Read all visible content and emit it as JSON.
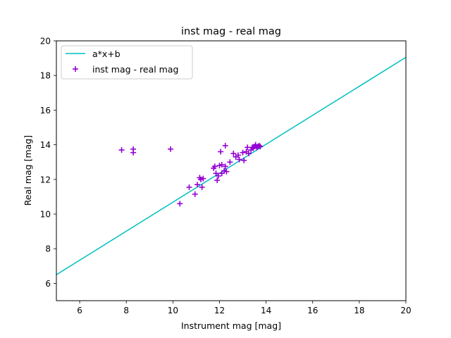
{
  "chart_data": {
    "type": "scatter",
    "title": "inst mag - real mag",
    "xlabel": "Instrument mag [mag]",
    "ylabel": "Real mag [mag]",
    "xlim": [
      5,
      20
    ],
    "ylim": [
      5,
      20
    ],
    "xticks": [
      6,
      8,
      10,
      12,
      14,
      16,
      18,
      20
    ],
    "yticks": [
      6,
      8,
      10,
      12,
      14,
      16,
      18,
      20
    ],
    "grid": false,
    "legend_position": "top-left",
    "series": [
      {
        "name": "a*x+b",
        "kind": "line",
        "color": "#00bfbf",
        "x": [
          5,
          20
        ],
        "y": [
          6.5,
          19.05
        ]
      },
      {
        "name": "inst mag - real mag",
        "kind": "scatter",
        "marker": "plus",
        "color": "#9400d3",
        "x": [
          7.8,
          8.3,
          8.3,
          9.9,
          10.3,
          10.7,
          10.95,
          11.05,
          11.15,
          11.25,
          11.2,
          11.3,
          11.75,
          11.8,
          11.85,
          11.9,
          11.95,
          12.0,
          12.05,
          12.1,
          12.1,
          12.2,
          12.25,
          12.25,
          12.3,
          12.45,
          12.6,
          12.7,
          12.8,
          12.85,
          13.0,
          13.05,
          13.15,
          13.2,
          13.25,
          13.35,
          13.4,
          13.45,
          13.5,
          13.55,
          13.6,
          13.65,
          13.7,
          13.75
        ],
        "y": [
          13.7,
          13.75,
          13.55,
          13.75,
          10.6,
          11.55,
          11.15,
          11.7,
          12.1,
          11.55,
          12.0,
          12.05,
          12.65,
          12.75,
          12.35,
          11.95,
          12.2,
          12.8,
          13.6,
          12.35,
          12.85,
          12.5,
          12.75,
          13.95,
          12.45,
          13.0,
          13.5,
          13.3,
          13.4,
          13.15,
          13.55,
          13.1,
          13.6,
          13.85,
          13.5,
          13.7,
          13.85,
          13.8,
          13.9,
          14.0,
          13.85,
          13.9,
          13.95,
          13.9
        ]
      }
    ]
  }
}
